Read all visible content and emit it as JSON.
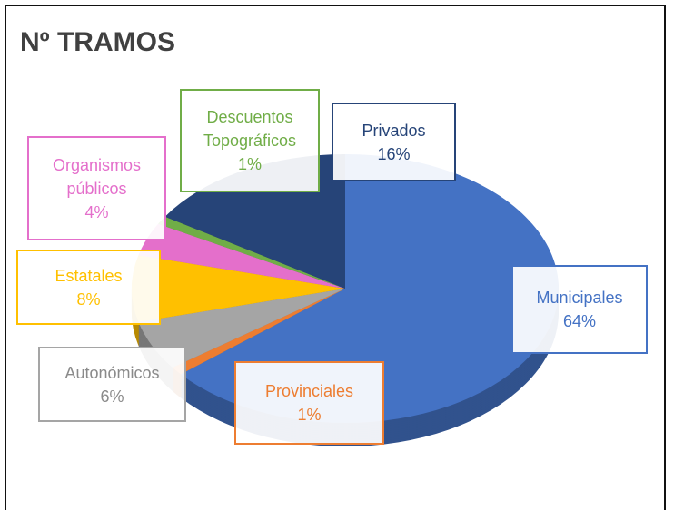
{
  "chart_data": {
    "type": "pie",
    "title": "Nº TRAMOS",
    "categories": [
      "Municipales",
      "Provinciales",
      "Autonómicos",
      "Estatales",
      "Organismos públicos",
      "Descuentos Topográficos",
      "Privados"
    ],
    "values": [
      64,
      1,
      6,
      8,
      4,
      1,
      16
    ],
    "value_labels": [
      "64%",
      "1%",
      "6%",
      "8%",
      "4%",
      "1%",
      "16%"
    ],
    "colors": [
      "#4472c4",
      "#ed7d31",
      "#a5a5a5",
      "#ffc000",
      "#e46fcb",
      "#70ad47",
      "#264478"
    ]
  }
}
